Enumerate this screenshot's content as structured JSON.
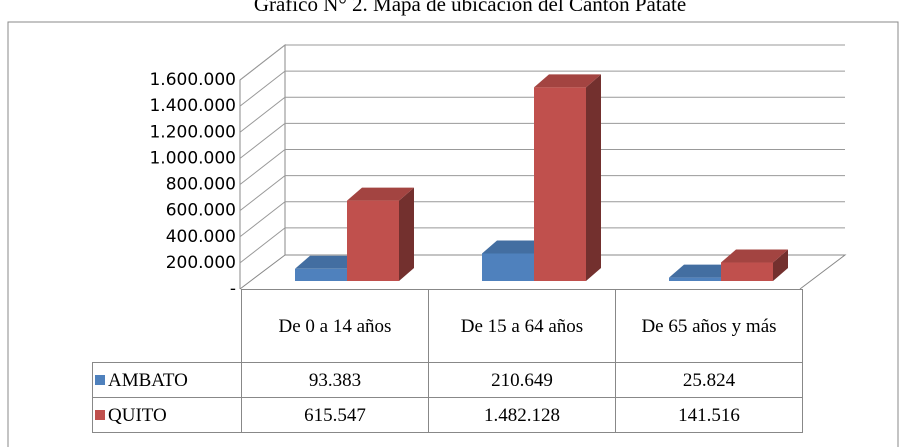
{
  "chart_data": {
    "type": "bar3d",
    "title": "Gráfico N° 2. Mapa de ubicación del Cantón Patate",
    "categories": [
      "De 0 a 14 años",
      "De 15 a 64 años",
      "De 65 años y más"
    ],
    "series": [
      {
        "name": "AMBATO",
        "color": "#4f81bd",
        "values": [
          93383,
          210649,
          25824
        ],
        "value_labels": [
          "93.383",
          "210.649",
          "25.824"
        ]
      },
      {
        "name": "QUITO",
        "color": "#c0504d",
        "values": [
          615547,
          1482128,
          141516
        ],
        "value_labels": [
          "615.547",
          "1.482.128",
          "141.516"
        ]
      }
    ],
    "ylim": [
      0,
      1600000
    ],
    "yticks": [
      {
        "value": 0,
        "label": "-"
      },
      {
        "value": 200000,
        "label": "200.000"
      },
      {
        "value": 400000,
        "label": "400.000"
      },
      {
        "value": 600000,
        "label": "600.000"
      },
      {
        "value": 800000,
        "label": "800.000"
      },
      {
        "value": 1000000,
        "label": "1.000.000"
      },
      {
        "value": 1200000,
        "label": "1.200.000"
      },
      {
        "value": 1400000,
        "label": "1.400.000"
      },
      {
        "value": 1600000,
        "label": "1.600.000"
      }
    ],
    "grid": true
  }
}
